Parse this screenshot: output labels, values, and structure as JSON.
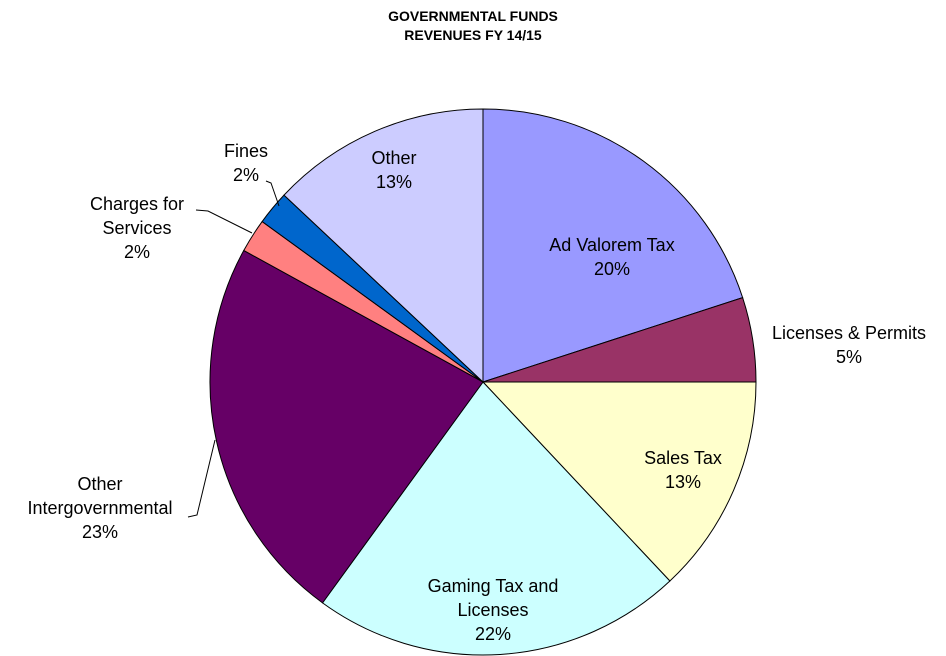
{
  "chart_data": {
    "type": "pie",
    "title": [
      "GOVERNMENTAL FUNDS",
      "REVENUES FY 14/15"
    ],
    "categories": [
      "Ad Valorem Tax",
      "Licenses & Permits",
      "Sales Tax",
      "Gaming Tax and Licenses",
      "Other Intergovernmental",
      "Charges for Services",
      "Fines",
      "Other"
    ],
    "values": [
      20,
      5,
      13,
      22,
      23,
      2,
      2,
      13
    ],
    "value_labels": [
      "20%",
      "5%",
      "13%",
      "22%",
      "23%",
      "2%",
      "2%",
      "13%"
    ],
    "colors": [
      "#9999ff",
      "#993366",
      "#ffffcc",
      "#ccffff",
      "#660066",
      "#ff8080",
      "#0066cc",
      "#ccccff"
    ]
  }
}
